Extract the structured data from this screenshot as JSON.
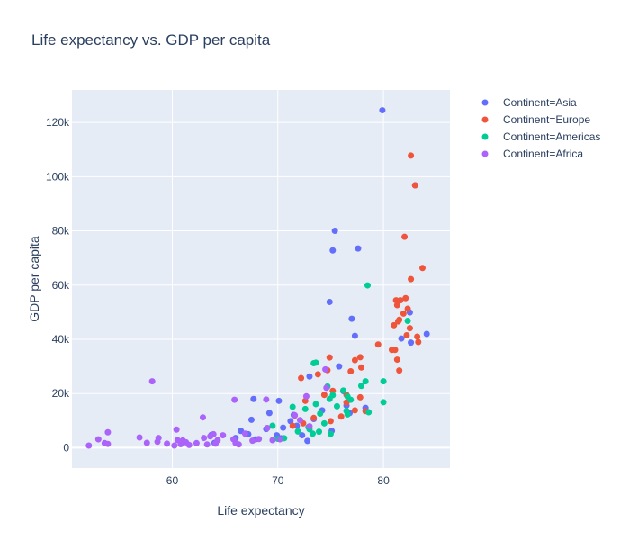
{
  "chart_data": {
    "type": "scatter",
    "title": "Life expectancy vs. GDP per capita",
    "xlabel": "Life expectancy",
    "ylabel": "GDP per capita",
    "xlim": [
      50.5,
      86.3
    ],
    "ylim": [
      -7500,
      132000
    ],
    "x_ticks": [
      {
        "value": 60,
        "label": "60"
      },
      {
        "value": 70,
        "label": "70"
      },
      {
        "value": 80,
        "label": "80"
      }
    ],
    "y_ticks": [
      {
        "value": 0,
        "label": "0"
      },
      {
        "value": 20000,
        "label": "20k"
      },
      {
        "value": 40000,
        "label": "40k"
      },
      {
        "value": 60000,
        "label": "60k"
      },
      {
        "value": 80000,
        "label": "80k"
      },
      {
        "value": 100000,
        "label": "100k"
      },
      {
        "value": 120000,
        "label": "120k"
      }
    ],
    "grid": true,
    "legend_position": "top-right",
    "background_color": "#e5ecf6",
    "series": [
      {
        "name": "Continent=Asia",
        "color": "#636efa",
        "points": [
          [
            79.9,
            124500
          ],
          [
            83.0,
            96800
          ],
          [
            77.6,
            73500
          ],
          [
            75.4,
            80000
          ],
          [
            75.2,
            72800
          ],
          [
            74.9,
            53800
          ],
          [
            77.0,
            47600
          ],
          [
            84.1,
            42000
          ],
          [
            82.5,
            49900
          ],
          [
            82.6,
            38800
          ],
          [
            81.7,
            40300
          ],
          [
            77.3,
            41300
          ],
          [
            75.8,
            30000
          ],
          [
            76.2,
            20900
          ],
          [
            73.0,
            26300
          ],
          [
            76.5,
            15600
          ],
          [
            78.3,
            14700
          ],
          [
            74.2,
            13800
          ],
          [
            76.8,
            12800
          ],
          [
            71.5,
            12100
          ],
          [
            71.2,
            9800
          ],
          [
            70.5,
            7400
          ],
          [
            71.8,
            8100
          ],
          [
            69.9,
            4600
          ],
          [
            68.9,
            6900
          ],
          [
            67.5,
            10300
          ],
          [
            66.5,
            6200
          ],
          [
            67.2,
            5000
          ],
          [
            67.7,
            18000
          ],
          [
            70.1,
            17300
          ],
          [
            72.8,
            2500
          ],
          [
            70.3,
            3500
          ],
          [
            67.9,
            3100
          ],
          [
            64.0,
            1800
          ],
          [
            66.0,
            3600
          ],
          [
            69.2,
            12800
          ],
          [
            73.4,
            10600
          ],
          [
            72.3,
            4600
          ],
          [
            75.1,
            6200
          ],
          [
            63.7,
            4700
          ]
        ]
      },
      {
        "name": "Continent=Europe",
        "color": "#EF553B",
        "points": [
          [
            82.6,
            107800
          ],
          [
            83.0,
            96800
          ],
          [
            82.0,
            77800
          ],
          [
            83.7,
            66300
          ],
          [
            82.6,
            62200
          ],
          [
            82.1,
            55200
          ],
          [
            81.2,
            54400
          ],
          [
            81.6,
            54400
          ],
          [
            81.3,
            52600
          ],
          [
            82.3,
            51300
          ],
          [
            81.9,
            49500
          ],
          [
            81.5,
            47200
          ],
          [
            81.0,
            45200
          ],
          [
            81.4,
            46600
          ],
          [
            82.5,
            44100
          ],
          [
            83.2,
            41000
          ],
          [
            82.2,
            41500
          ],
          [
            83.3,
            39000
          ],
          [
            80.8,
            36100
          ],
          [
            81.1,
            36100
          ],
          [
            79.5,
            38100
          ],
          [
            81.3,
            32500
          ],
          [
            81.5,
            28500
          ],
          [
            77.8,
            33400
          ],
          [
            77.3,
            32300
          ],
          [
            77.9,
            29600
          ],
          [
            76.9,
            28200
          ],
          [
            74.9,
            33300
          ],
          [
            74.7,
            28600
          ],
          [
            73.8,
            27100
          ],
          [
            75.2,
            21000
          ],
          [
            72.6,
            17300
          ],
          [
            72.2,
            25700
          ],
          [
            74.4,
            19500
          ],
          [
            76.5,
            19500
          ],
          [
            77.8,
            18600
          ],
          [
            73.4,
            11000
          ],
          [
            72.4,
            9000
          ],
          [
            71.6,
            11900
          ],
          [
            75.0,
            9800
          ],
          [
            76.0,
            11500
          ],
          [
            77.3,
            13800
          ],
          [
            71.4,
            8100
          ],
          [
            76.5,
            16700
          ],
          [
            78.3,
            13500
          ]
        ]
      },
      {
        "name": "Continent=Americas",
        "color": "#00cc96",
        "points": [
          [
            78.5,
            59900
          ],
          [
            82.3,
            46800
          ],
          [
            73.4,
            31200
          ],
          [
            73.6,
            31400
          ],
          [
            74.7,
            22600
          ],
          [
            76.2,
            21100
          ],
          [
            75.2,
            19400
          ],
          [
            78.3,
            24500
          ],
          [
            80.0,
            24500
          ],
          [
            77.9,
            22800
          ],
          [
            76.6,
            18900
          ],
          [
            71.4,
            15100
          ],
          [
            72.6,
            14300
          ],
          [
            73.6,
            16100
          ],
          [
            75.6,
            15300
          ],
          [
            76.9,
            17700
          ],
          [
            74.0,
            12600
          ],
          [
            74.4,
            9000
          ],
          [
            76.6,
            12300
          ],
          [
            78.6,
            13100
          ],
          [
            80.0,
            16800
          ],
          [
            69.5,
            8100
          ],
          [
            70.0,
            3300
          ],
          [
            73.0,
            6800
          ],
          [
            71.9,
            6000
          ],
          [
            73.3,
            5200
          ],
          [
            73.9,
            5900
          ],
          [
            75.0,
            5100
          ],
          [
            74.9,
            18000
          ],
          [
            76.5,
            13600
          ],
          [
            72.9,
            7600
          ],
          [
            70.6,
            3500
          ]
        ]
      },
      {
        "name": "Continent=Africa",
        "color": "#ab63fa",
        "points": [
          [
            58.1,
            24500
          ],
          [
            65.9,
            17700
          ],
          [
            68.9,
            17800
          ],
          [
            72.7,
            19000
          ],
          [
            74.5,
            28900
          ],
          [
            74.6,
            22100
          ],
          [
            62.9,
            11200
          ],
          [
            52.1,
            800
          ],
          [
            53.0,
            3100
          ],
          [
            53.6,
            1700
          ],
          [
            53.9,
            5700
          ],
          [
            53.9,
            1400
          ],
          [
            56.9,
            3800
          ],
          [
            57.6,
            1800
          ],
          [
            58.6,
            2200
          ],
          [
            58.7,
            3600
          ],
          [
            59.5,
            1500
          ],
          [
            60.2,
            800
          ],
          [
            60.4,
            6700
          ],
          [
            60.5,
            2800
          ],
          [
            60.8,
            1300
          ],
          [
            61.0,
            2700
          ],
          [
            61.3,
            2000
          ],
          [
            61.6,
            1000
          ],
          [
            62.3,
            1700
          ],
          [
            63.0,
            3600
          ],
          [
            63.3,
            1200
          ],
          [
            63.6,
            4200
          ],
          [
            63.9,
            5000
          ],
          [
            64.1,
            1500
          ],
          [
            64.3,
            2800
          ],
          [
            64.8,
            4600
          ],
          [
            65.8,
            3100
          ],
          [
            66.0,
            1700
          ],
          [
            66.3,
            1200
          ],
          [
            66.9,
            5200
          ],
          [
            67.6,
            2600
          ],
          [
            68.2,
            3200
          ],
          [
            69.0,
            7300
          ],
          [
            70.2,
            3100
          ],
          [
            71.6,
            12000
          ],
          [
            72.1,
            10200
          ],
          [
            73.0,
            7900
          ],
          [
            69.5,
            2800
          ]
        ]
      }
    ]
  }
}
